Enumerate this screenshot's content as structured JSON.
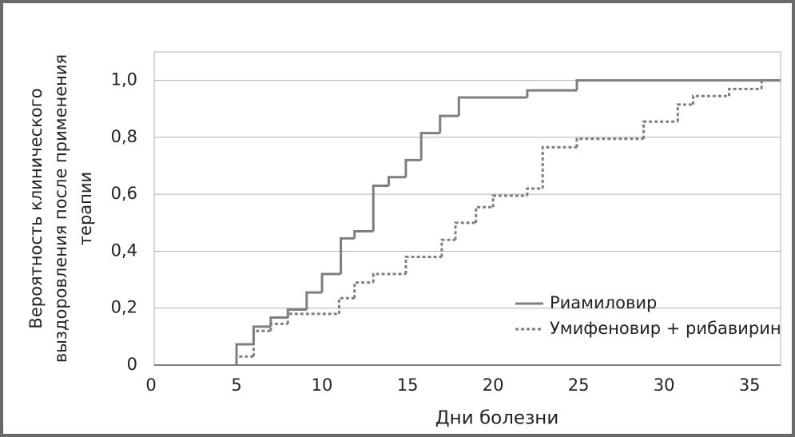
{
  "chart_data": {
    "type": "step",
    "ylabel": [
      "Вероятность клинического",
      "выздоровления  после применения",
      "терапии"
    ],
    "xlabel": "Дни болезни",
    "xlim": [
      0,
      37
    ],
    "ylim": [
      0,
      1.1
    ],
    "xticks": [
      0,
      5,
      10,
      15,
      20,
      25,
      30,
      35
    ],
    "yticks": [
      0,
      {
        "value": 0.2,
        "label": "0,2"
      },
      {
        "value": 0.4,
        "label": "0,4"
      },
      {
        "value": 0.6,
        "label": "0,6"
      },
      {
        "value": 0.8,
        "label": "0,8"
      },
      {
        "value": 1.0,
        "label": "1,0"
      }
    ],
    "grid": true,
    "legend": "lower right",
    "series": [
      {
        "name": "Риамиловир",
        "color": "#7f7f7f",
        "style": "solid",
        "x": [
          5.0,
          6.0,
          7.0,
          8.0,
          9.1,
          10.0,
          11.1,
          11.9,
          13.0,
          13.9,
          14.9,
          15.8,
          16.9,
          18.0,
          22.0,
          24.9,
          36.8
        ],
        "values": [
          0.073,
          0.135,
          0.167,
          0.195,
          0.255,
          0.32,
          0.445,
          0.47,
          0.63,
          0.66,
          0.72,
          0.815,
          0.875,
          0.94,
          0.965,
          1.0,
          1.0
        ]
      },
      {
        "name": "Умифеновир + рибавирин",
        "color": "#7f7f7f",
        "style": "dotted",
        "x": [
          5.0,
          6.0,
          7.0,
          8.0,
          11.0,
          11.9,
          13.0,
          14.9,
          17.0,
          17.8,
          19.0,
          20.0,
          22.0,
          22.9,
          24.9,
          28.8,
          30.8,
          31.7,
          33.8,
          35.7,
          36.8
        ],
        "values": [
          0.03,
          0.12,
          0.145,
          0.18,
          0.235,
          0.29,
          0.32,
          0.38,
          0.44,
          0.5,
          0.555,
          0.595,
          0.62,
          0.765,
          0.795,
          0.855,
          0.915,
          0.945,
          0.97,
          1.0,
          1.0
        ]
      }
    ]
  }
}
